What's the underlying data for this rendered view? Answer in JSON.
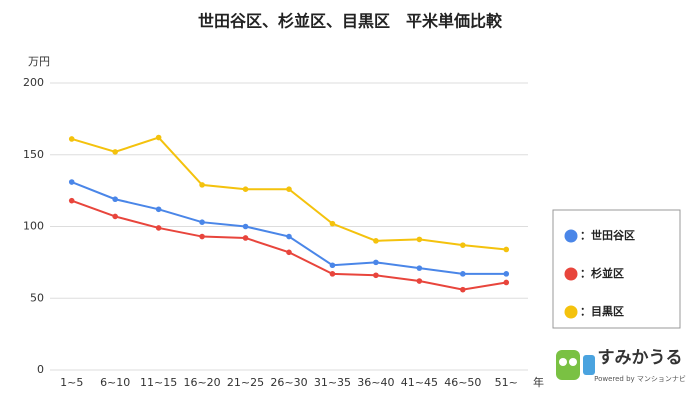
{
  "chart_data": {
    "type": "line",
    "title": "世田谷区、杉並区、目黒区　平米単価比較",
    "y_label": "万円",
    "x_label": "年",
    "categories": [
      "1~5",
      "6~10",
      "11~15",
      "16~20",
      "21~25",
      "26~30",
      "31~35",
      "36~40",
      "41~45",
      "46~50",
      "51~"
    ],
    "series": [
      {
        "name": "：世田谷区",
        "color": "#4a86e8",
        "values": [
          131,
          119,
          112,
          103,
          100,
          93,
          73,
          75,
          71,
          67,
          67
        ]
      },
      {
        "name": "：杉並区",
        "color": "#e8453c",
        "values": [
          118,
          107,
          99,
          93,
          92,
          82,
          67,
          66,
          62,
          56,
          61
        ]
      },
      {
        "name": "：目黒区",
        "color": "#f4c20d",
        "values": [
          161,
          152,
          162,
          129,
          126,
          126,
          102,
          90,
          91,
          87,
          84
        ]
      }
    ],
    "ylim": [
      0,
      200
    ],
    "yticks": [
      0,
      50,
      100,
      150,
      200
    ],
    "grid": true,
    "legend": "right"
  },
  "logo": {
    "name": "すみかうる",
    "tagline": "Powered by マンションナビ"
  }
}
